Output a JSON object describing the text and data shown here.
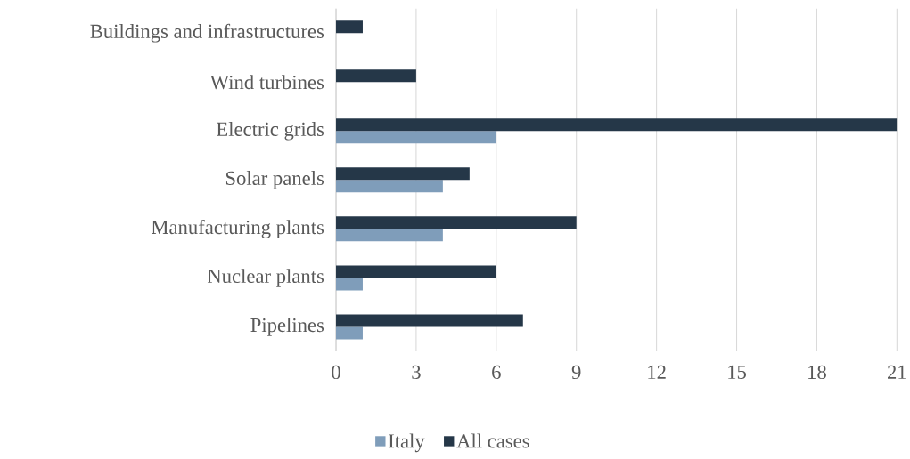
{
  "chart_data": {
    "type": "bar",
    "orientation": "horizontal",
    "categories": [
      "Buildings and infrastructures",
      "Wind turbines",
      "Electric grids",
      "Solar panels",
      "Manufacturing plants",
      "Nuclear plants",
      "Pipelines"
    ],
    "series": [
      {
        "name": "Italy",
        "color": "#7f9dba",
        "values": [
          0,
          0,
          6,
          4,
          4,
          1,
          1
        ]
      },
      {
        "name": "All cases",
        "color": "#253748",
        "values": [
          1,
          3,
          21,
          5,
          9,
          6,
          7
        ]
      }
    ],
    "xlim": [
      0,
      21
    ],
    "xticks": [
      0,
      3,
      6,
      9,
      12,
      15,
      18,
      21
    ],
    "grid": "x",
    "legend": "bottom"
  }
}
